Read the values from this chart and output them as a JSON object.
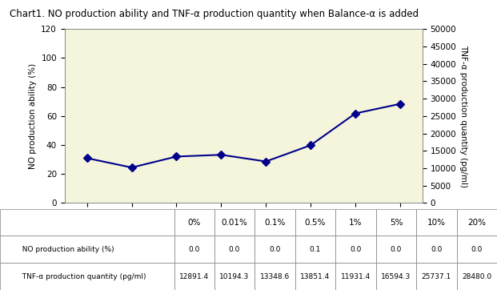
{
  "title": "Chart1. NO production ability and TNF-α production quantity when Balance-α is added",
  "categories": [
    "0%",
    "0.01%",
    "0.1%",
    "0.5%",
    "1%",
    "5%",
    "10%",
    "20%"
  ],
  "no_values": [
    0.0,
    0.0,
    0.0,
    0.1,
    0.0,
    0.0,
    0.0,
    0.0
  ],
  "tnf_values": [
    12891.4,
    10194.3,
    13348.6,
    13851.4,
    11931.4,
    16594.3,
    25737.1,
    28480.0
  ],
  "left_ylabel": "NO production ability (%)",
  "right_ylabel": "TNF-α production quantity (pg/ml)",
  "left_ylim": [
    0,
    120
  ],
  "left_yticks": [
    0,
    20,
    40,
    60,
    80,
    100,
    120
  ],
  "right_ylim": [
    0,
    50000
  ],
  "right_yticks": [
    0,
    5000,
    10000,
    15000,
    20000,
    25000,
    30000,
    35000,
    40000,
    45000,
    50000
  ],
  "line_color": "#00008B",
  "marker": "D",
  "bg_color": "#F5F5DC",
  "legend_no_label": "NO production ability (%)",
  "legend_tnf_label": "TNF-α production quantity (pg/ml)",
  "table_no_values": [
    "0.0",
    "0.0",
    "0.0",
    "0.1",
    "0.0",
    "0.0",
    "0.0",
    "0.0"
  ],
  "table_tnf_values": [
    "12891.4",
    "10194.3",
    "13348.6",
    "13851.4",
    "11931.4",
    "16594.3",
    "25737.1",
    "28480.0"
  ]
}
